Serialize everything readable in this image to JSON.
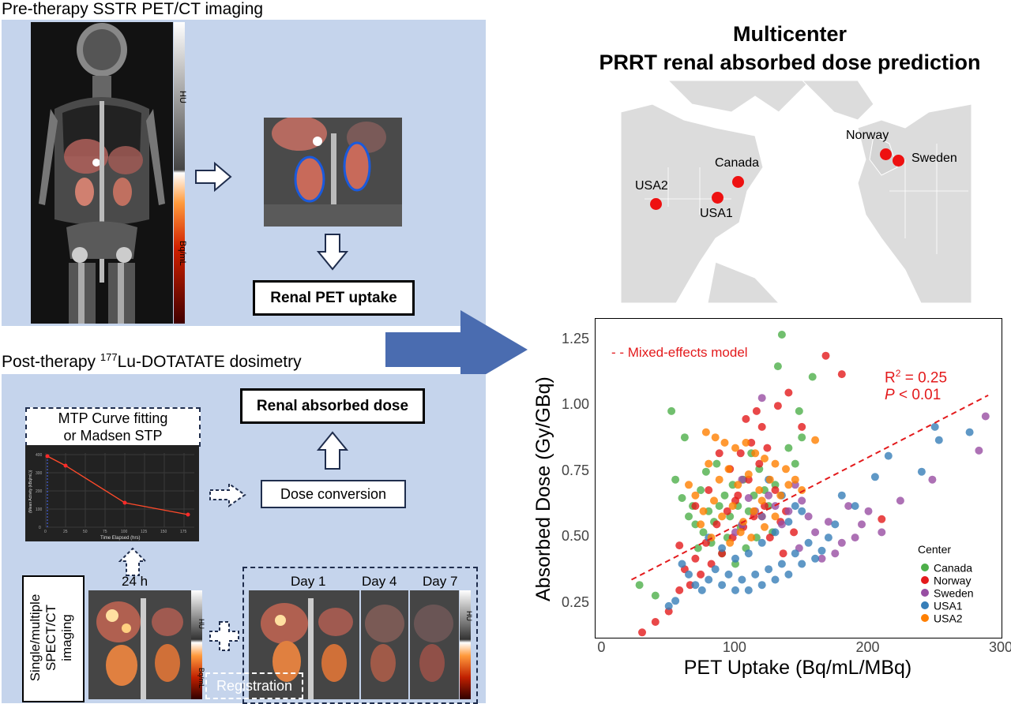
{
  "pre": {
    "title": "Pre-therapy SSTR PET/CT imaging",
    "scale_hu": "HU",
    "scale_bq": "Bq/mL",
    "result": "Renal PET uptake"
  },
  "post": {
    "title_pre": "Post-therapy ",
    "title_sup": "177",
    "title_post": "Lu-DOTATATE dosimetry",
    "fit_line1": "MTP Curve fitting",
    "fit_line2": "or Madsen STP",
    "result": "Renal absorbed dose",
    "dose_conversion": "Dose conversion",
    "imaging_line1": "Single/multiple",
    "imaging_line2": "SPECT/CT",
    "imaging_line3": "imaging",
    "time_24h": "24 h",
    "day1": "Day 1",
    "day4": "Day 4",
    "day7": "Day 7",
    "registration": "Registration",
    "scale_hu": "HU",
    "scale_bq": "Bq/mL",
    "curve_ylabel": "(Mean Activity (kBq/mL))",
    "curve_xlabel": "Time Elapsed (hrs)",
    "curve_xticks": [
      "0",
      "25",
      "50",
      "75",
      "100",
      "125",
      "150",
      "175"
    ],
    "curve_yticks": [
      "0",
      "100",
      "200",
      "300",
      "400"
    ]
  },
  "title": {
    "line1": "Multicenter",
    "line2": "PRRT renal absorbed dose prediction"
  },
  "map": {
    "sites": [
      {
        "name": "Norway"
      },
      {
        "name": "Sweden"
      },
      {
        "name": "Canada"
      },
      {
        "name": "USA2"
      },
      {
        "name": "USA1"
      }
    ]
  },
  "colors": {
    "panel": "#c5d4ec",
    "arrow": "#4a6cb0",
    "marker": "#ee1111",
    "model": "#e31a1c",
    "canada": "#4daf4a",
    "norway": "#e41a1c",
    "sweden": "#984ea3",
    "usa1": "#377eb8",
    "usa2": "#ff7f00"
  },
  "chart_data": {
    "type": "scatter",
    "xlabel": "PET Uptake (Bq/mL/MBq)",
    "ylabel": "Absorbed Dose (Gy/GBq)",
    "xlim": [
      -5,
      300
    ],
    "ylim": [
      0.12,
      1.33
    ],
    "xticks": [
      0,
      100,
      200,
      300
    ],
    "yticks": [
      0.25,
      0.5,
      0.75,
      1.0,
      1.25
    ],
    "xtick_labels": [
      "0",
      "100",
      "200",
      "300"
    ],
    "ytick_labels": [
      "0.25",
      "0.50",
      "0.75",
      "1.00",
      "1.25"
    ],
    "grid": false,
    "legend_title": "Center",
    "legend_position": "bottom-right",
    "model_label": "- - Mixed-effects model",
    "r2_label": "R",
    "r2_sup": "2",
    "r2_value": " = 0.25",
    "p_label": "P",
    "p_value": " < 0.01",
    "model_line": {
      "x": [
        22,
        290
      ],
      "y": [
        0.34,
        1.04
      ]
    },
    "series": [
      {
        "name": "Canada",
        "color": "#4daf4a",
        "points": [
          [
            52,
            0.98
          ],
          [
            62,
            0.88
          ],
          [
            135,
            1.27
          ],
          [
            132,
            1.15
          ],
          [
            158,
            1.11
          ],
          [
            148,
            0.98
          ],
          [
            150,
            0.88
          ],
          [
            28,
            0.32
          ],
          [
            40,
            0.28
          ],
          [
            55,
            0.72
          ],
          [
            60,
            0.65
          ],
          [
            65,
            0.58
          ],
          [
            68,
            0.62
          ],
          [
            70,
            0.55
          ],
          [
            72,
            0.46
          ],
          [
            74,
            0.68
          ],
          [
            76,
            0.52
          ],
          [
            78,
            0.75
          ],
          [
            80,
            0.6
          ],
          [
            82,
            0.48
          ],
          [
            84,
            0.56
          ],
          [
            86,
            0.78
          ],
          [
            88,
            0.62
          ],
          [
            90,
            0.44
          ],
          [
            92,
            0.66
          ],
          [
            94,
            0.5
          ],
          [
            96,
            0.58
          ],
          [
            98,
            0.7
          ],
          [
            100,
            0.4
          ],
          [
            102,
            0.62
          ],
          [
            104,
            0.54
          ],
          [
            106,
            0.72
          ],
          [
            108,
            0.46
          ],
          [
            110,
            0.6
          ],
          [
            112,
            0.82
          ],
          [
            114,
            0.66
          ],
          [
            116,
            0.5
          ],
          [
            118,
            0.76
          ],
          [
            120,
            0.58
          ],
          [
            122,
            0.68
          ],
          [
            125,
            0.62
          ],
          [
            128,
            0.52
          ],
          [
            130,
            0.7
          ],
          [
            140,
            0.84
          ],
          [
            145,
            0.78
          ]
        ]
      },
      {
        "name": "Norway",
        "color": "#e41a1c",
        "points": [
          [
            168,
            1.19
          ],
          [
            180,
            1.12
          ],
          [
            140,
            1.05
          ],
          [
            132,
            1.0
          ],
          [
            150,
            0.92
          ],
          [
            30,
            0.14
          ],
          [
            40,
            0.18
          ],
          [
            50,
            0.22
          ],
          [
            58,
            0.3
          ],
          [
            62,
            0.38
          ],
          [
            66,
            0.32
          ],
          [
            70,
            0.42
          ],
          [
            74,
            0.36
          ],
          [
            78,
            0.48
          ],
          [
            82,
            0.4
          ],
          [
            86,
            0.55
          ],
          [
            90,
            0.44
          ],
          [
            94,
            0.6
          ],
          [
            98,
            0.5
          ],
          [
            102,
            0.66
          ],
          [
            106,
            0.54
          ],
          [
            110,
            0.72
          ],
          [
            114,
            0.58
          ],
          [
            118,
            0.78
          ],
          [
            122,
            0.62
          ],
          [
            126,
            0.5
          ],
          [
            130,
            0.68
          ],
          [
            134,
            0.56
          ],
          [
            138,
            0.6
          ],
          [
            70,
            0.62
          ],
          [
            80,
            0.68
          ],
          [
            96,
            0.76
          ],
          [
            104,
            0.82
          ],
          [
            112,
            0.86
          ],
          [
            120,
            0.92
          ],
          [
            108,
            0.95
          ],
          [
            124,
            0.84
          ],
          [
            116,
            0.98
          ],
          [
            210,
            0.57
          ],
          [
            58,
            0.47
          ],
          [
            88,
            0.82
          ],
          [
            100,
            0.64
          ],
          [
            136,
            0.44
          ],
          [
            144,
            0.52
          ]
        ]
      },
      {
        "name": "Sweden",
        "color": "#984ea3",
        "points": [
          [
            288,
            0.96
          ],
          [
            283,
            0.83
          ],
          [
            248,
            0.72
          ],
          [
            224,
            0.64
          ],
          [
            200,
            0.6
          ],
          [
            195,
            0.55
          ],
          [
            190,
            0.5
          ],
          [
            180,
            0.48
          ],
          [
            175,
            0.44
          ],
          [
            165,
            0.42
          ],
          [
            160,
            0.52
          ],
          [
            155,
            0.58
          ],
          [
            150,
            0.64
          ],
          [
            145,
            0.7
          ],
          [
            140,
            0.6
          ],
          [
            135,
            0.55
          ],
          [
            130,
            0.62
          ],
          [
            125,
            0.66
          ],
          [
            120,
            0.58
          ],
          [
            115,
            0.6
          ],
          [
            110,
            0.65
          ],
          [
            105,
            0.55
          ],
          [
            100,
            0.52
          ],
          [
            148,
            0.46
          ],
          [
            170,
            0.56
          ],
          [
            185,
            0.62
          ],
          [
            120,
            1.03
          ],
          [
            105,
            0.72
          ],
          [
            210,
            0.52
          ]
        ]
      },
      {
        "name": "USA1",
        "color": "#377eb8",
        "points": [
          [
            250,
            0.92
          ],
          [
            253,
            0.87
          ],
          [
            276,
            0.9
          ],
          [
            240,
            0.75
          ],
          [
            215,
            0.81
          ],
          [
            205,
            0.73
          ],
          [
            190,
            0.62
          ],
          [
            180,
            0.66
          ],
          [
            175,
            0.55
          ],
          [
            170,
            0.5
          ],
          [
            165,
            0.45
          ],
          [
            160,
            0.42
          ],
          [
            155,
            0.48
          ],
          [
            150,
            0.4
          ],
          [
            145,
            0.44
          ],
          [
            140,
            0.36
          ],
          [
            135,
            0.4
          ],
          [
            130,
            0.34
          ],
          [
            125,
            0.38
          ],
          [
            120,
            0.32
          ],
          [
            115,
            0.36
          ],
          [
            110,
            0.3
          ],
          [
            105,
            0.34
          ],
          [
            100,
            0.3
          ],
          [
            95,
            0.36
          ],
          [
            90,
            0.32
          ],
          [
            85,
            0.38
          ],
          [
            80,
            0.34
          ],
          [
            75,
            0.3
          ],
          [
            70,
            0.32
          ],
          [
            65,
            0.36
          ],
          [
            60,
            0.4
          ],
          [
            55,
            0.26
          ],
          [
            50,
            0.24
          ],
          [
            110,
            0.44
          ],
          [
            120,
            0.48
          ],
          [
            130,
            0.52
          ],
          [
            140,
            0.56
          ],
          [
            150,
            0.6
          ],
          [
            100,
            0.42
          ],
          [
            90,
            0.46
          ],
          [
            80,
            0.5
          ],
          [
            125,
            0.72
          ],
          [
            135,
            0.66
          ],
          [
            145,
            0.62
          ]
        ]
      },
      {
        "name": "USA2",
        "color": "#ff7f00",
        "points": [
          [
            78,
            0.9
          ],
          [
            85,
            0.88
          ],
          [
            92,
            0.86
          ],
          [
            100,
            0.84
          ],
          [
            108,
            0.86
          ],
          [
            115,
            0.82
          ],
          [
            122,
            0.8
          ],
          [
            130,
            0.78
          ],
          [
            138,
            0.76
          ],
          [
            145,
            0.72
          ],
          [
            150,
            0.68
          ],
          [
            160,
            0.87
          ],
          [
            80,
            0.78
          ],
          [
            88,
            0.72
          ],
          [
            95,
            0.76
          ],
          [
            102,
            0.7
          ],
          [
            110,
            0.74
          ],
          [
            118,
            0.68
          ],
          [
            126,
            0.72
          ],
          [
            134,
            0.66
          ],
          [
            70,
            0.66
          ],
          [
            76,
            0.6
          ],
          [
            84,
            0.64
          ],
          [
            90,
            0.58
          ],
          [
            98,
            0.62
          ],
          [
            106,
            0.56
          ],
          [
            114,
            0.6
          ],
          [
            122,
            0.54
          ],
          [
            130,
            0.58
          ],
          [
            74,
            0.55
          ],
          [
            82,
            0.5
          ],
          [
            96,
            0.48
          ],
          [
            104,
            0.52
          ],
          [
            112,
            0.5
          ],
          [
            65,
            0.7
          ],
          [
            120,
            0.64
          ],
          [
            140,
            0.7
          ]
        ]
      }
    ]
  }
}
